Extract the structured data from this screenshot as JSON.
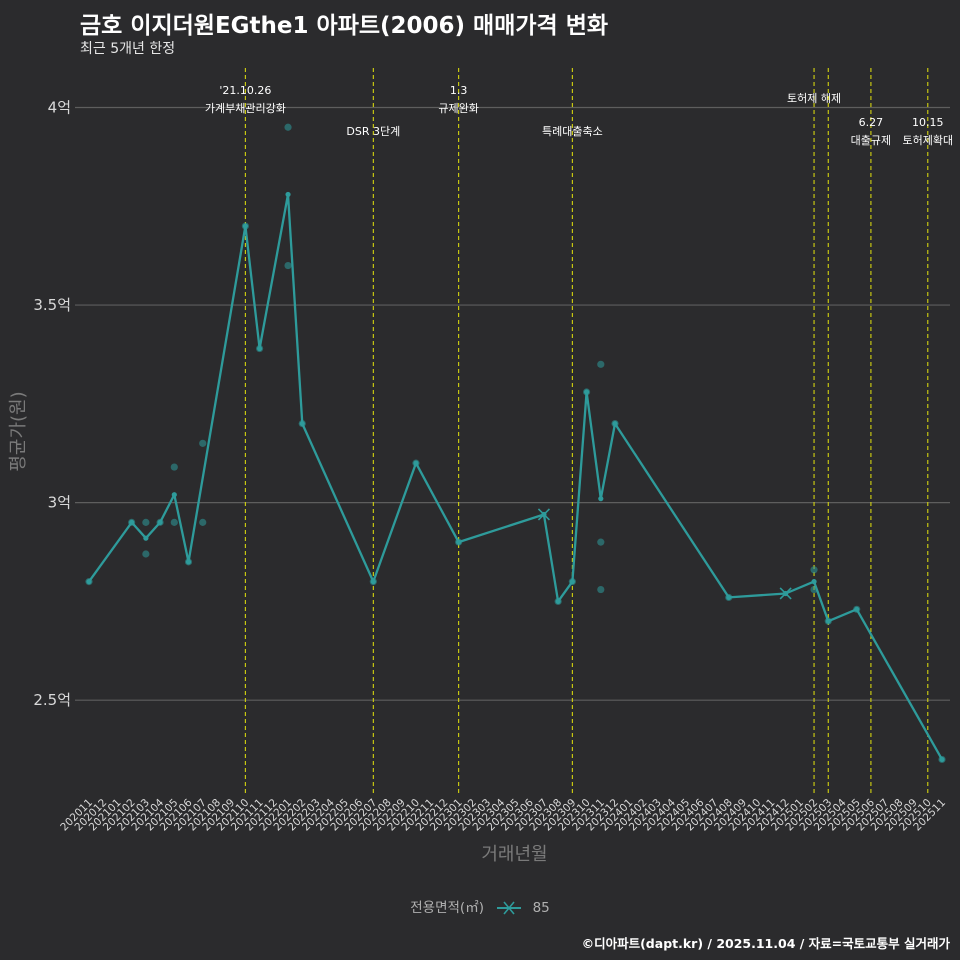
{
  "header": {
    "title": "금호 이지더원EGthe1 아파트(2006) 매매가격 변화",
    "subtitle": "최근 5개년 한정"
  },
  "caption": "©디아파트(dapt.kr) / 2025.11.04 / 자료=국토교통부 실거래가",
  "legend": {
    "title": "전용면적(㎡)",
    "items": [
      "85"
    ]
  },
  "colors": {
    "background": "#2b2b2d",
    "line": "#2e9b9b",
    "point": "#2e9b9b",
    "event_line": "#d4d40f",
    "grid": "#5e5e5e"
  },
  "chart_data": {
    "type": "line",
    "title": "금호 이지더원EGthe1 아파트(2006) 매매가격 변화",
    "xlabel": "거래년월",
    "ylabel": "평균가(원)",
    "ylim": [
      2.26,
      4.1
    ],
    "y_ticks": [
      {
        "v": 2.5,
        "label": "2.5억"
      },
      {
        "v": 3.0,
        "label": "3억"
      },
      {
        "v": 3.5,
        "label": "3.5억"
      },
      {
        "v": 4.0,
        "label": "4억"
      }
    ],
    "categories": [
      "202011",
      "202012",
      "202101",
      "202102",
      "202103",
      "202104",
      "202105",
      "202106",
      "202107",
      "202108",
      "202109",
      "202110",
      "202111",
      "202112",
      "202201",
      "202202",
      "202203",
      "202204",
      "202205",
      "202206",
      "202207",
      "202208",
      "202209",
      "202210",
      "202211",
      "202212",
      "202301",
      "202302",
      "202303",
      "202304",
      "202305",
      "202306",
      "202307",
      "202308",
      "202309",
      "202310",
      "202311",
      "202312",
      "202401",
      "202402",
      "202403",
      "202404",
      "202405",
      "202406",
      "202407",
      "202408",
      "202409",
      "202410",
      "202411",
      "202412",
      "202501",
      "202502",
      "202503",
      "202504",
      "202505",
      "202506",
      "202507",
      "202508",
      "202509",
      "202510",
      "202511"
    ],
    "series": [
      {
        "name": "85",
        "line": [
          {
            "x": "202011",
            "y": 2.8
          },
          {
            "x": "202102",
            "y": 2.95
          },
          {
            "x": "202103",
            "y": 2.91
          },
          {
            "x": "202104",
            "y": 2.95
          },
          {
            "x": "202105",
            "y": 3.02
          },
          {
            "x": "202106",
            "y": 2.85
          },
          {
            "x": "202110",
            "y": 3.7
          },
          {
            "x": "202111",
            "y": 3.39
          },
          {
            "x": "202201",
            "y": 3.78
          },
          {
            "x": "202202",
            "y": 3.2
          },
          {
            "x": "202207",
            "y": 2.8
          },
          {
            "x": "202210",
            "y": 3.1
          },
          {
            "x": "202301",
            "y": 2.9
          },
          {
            "x": "202307",
            "y": 2.97
          },
          {
            "x": "202308",
            "y": 2.75
          },
          {
            "x": "202309",
            "y": 2.8
          },
          {
            "x": "202310",
            "y": 3.28
          },
          {
            "x": "202311",
            "y": 3.01
          },
          {
            "x": "202312",
            "y": 3.2
          },
          {
            "x": "202408",
            "y": 2.76
          },
          {
            "x": "202412",
            "y": 2.77
          },
          {
            "x": "202502",
            "y": 2.8
          },
          {
            "x": "202503",
            "y": 2.7
          },
          {
            "x": "202505",
            "y": 2.73
          },
          {
            "x": "202511",
            "y": 2.35
          }
        ],
        "points": [
          {
            "x": "202011",
            "y": 2.8
          },
          {
            "x": "202102",
            "y": 2.95
          },
          {
            "x": "202103",
            "y": 2.95
          },
          {
            "x": "202103",
            "y": 2.87
          },
          {
            "x": "202104",
            "y": 2.95
          },
          {
            "x": "202105",
            "y": 3.09
          },
          {
            "x": "202105",
            "y": 2.95
          },
          {
            "x": "202106",
            "y": 2.85
          },
          {
            "x": "202107",
            "y": 3.15
          },
          {
            "x": "202107",
            "y": 2.95
          },
          {
            "x": "202110",
            "y": 3.7
          },
          {
            "x": "202111",
            "y": 3.39
          },
          {
            "x": "202201",
            "y": 3.95
          },
          {
            "x": "202201",
            "y": 3.6
          },
          {
            "x": "202202",
            "y": 3.2
          },
          {
            "x": "202207",
            "y": 2.8
          },
          {
            "x": "202210",
            "y": 3.1
          },
          {
            "x": "202301",
            "y": 2.9
          },
          {
            "x": "202308",
            "y": 2.75
          },
          {
            "x": "202309",
            "y": 2.8
          },
          {
            "x": "202310",
            "y": 3.28
          },
          {
            "x": "202311",
            "y": 3.35
          },
          {
            "x": "202311",
            "y": 2.9
          },
          {
            "x": "202311",
            "y": 2.78
          },
          {
            "x": "202312",
            "y": 3.2
          },
          {
            "x": "202408",
            "y": 2.76
          },
          {
            "x": "202502",
            "y": 2.83
          },
          {
            "x": "202502",
            "y": 2.78
          },
          {
            "x": "202503",
            "y": 2.7
          },
          {
            "x": "202505",
            "y": 2.73
          },
          {
            "x": "202511",
            "y": 2.35
          }
        ],
        "cross_markers": [
          {
            "x": "202307",
            "y": 2.97
          },
          {
            "x": "202412",
            "y": 2.77
          }
        ]
      }
    ],
    "events": [
      {
        "x": "202110",
        "lines": [
          "'21.10.26",
          "가계부채관리강화"
        ],
        "level": 1
      },
      {
        "x": "202207",
        "lines": [
          "DSR 3단계"
        ],
        "level": 2
      },
      {
        "x": "202301",
        "lines": [
          "1.3",
          "규제완화"
        ],
        "level": 1
      },
      {
        "x": "202309",
        "lines": [
          "특례대출축소"
        ],
        "level": 2
      },
      {
        "x": "202502",
        "lines": [
          "토허제 해제"
        ],
        "level": 1
      },
      {
        "x": "202503",
        "lines": [],
        "level": 0
      },
      {
        "x": "202506",
        "lines": [
          "6.27",
          "대출규제"
        ],
        "level": 3
      },
      {
        "x": "202510",
        "lines": [
          "10.15",
          "토허제확대"
        ],
        "level": 3
      }
    ]
  }
}
